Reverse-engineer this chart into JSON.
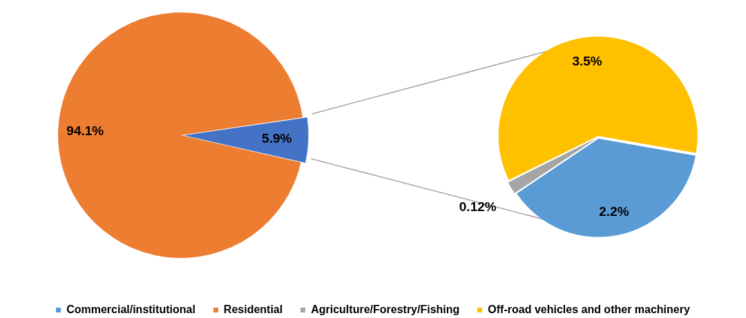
{
  "chart_data": [
    {
      "type": "pie",
      "categories": [
        null,
        "Residential"
      ],
      "values": [
        5.9,
        94.1
      ],
      "colors": [
        "#4472c4",
        "#ed7d31"
      ],
      "value_labels": [
        "5.9%",
        "94.1%"
      ],
      "legend": "bottom"
    },
    {
      "type": "pie",
      "categories": [
        "Commercial/institutional",
        "Agriculture/Forestry/Fishing",
        "Off-road vehicles and other machinery"
      ],
      "values": [
        2.2,
        0.12,
        3.5
      ],
      "colors": [
        "#5b9bd5",
        "#a5a5a5",
        "#ffc000"
      ],
      "value_labels": [
        "2.2%",
        "0.12%",
        "3.5%"
      ],
      "legend": "bottom"
    }
  ]
}
